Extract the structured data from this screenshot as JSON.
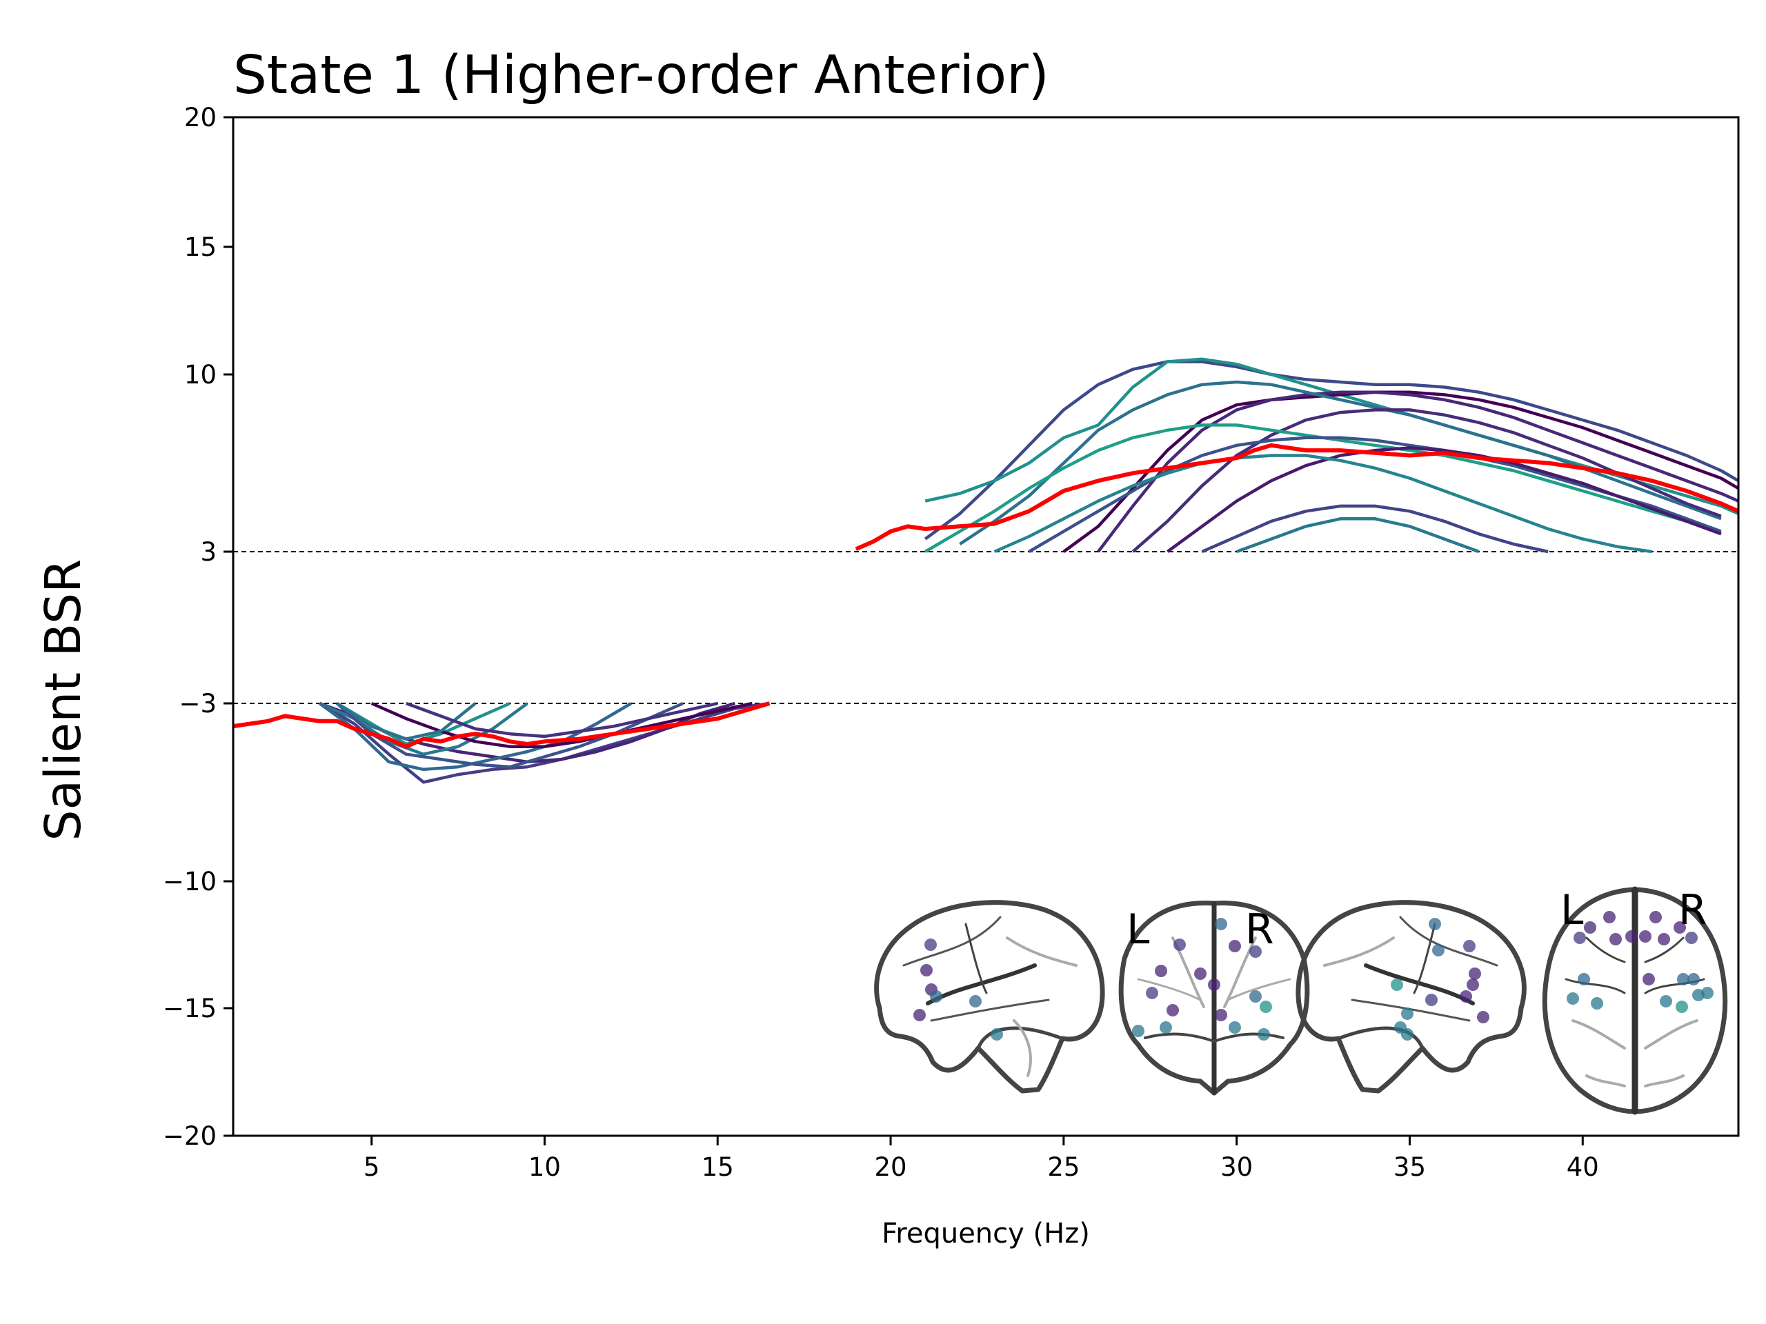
{
  "chart_data": {
    "type": "line",
    "title": "State 1 (Higher-order Anterior)",
    "xlabel": "Frequency (Hz)",
    "ylabel": "Salient BSR",
    "xlim": [
      1,
      44.5
    ],
    "ylim": [
      -20,
      20
    ],
    "y_scale": "piecewise: gap between -3 and 3 compressed",
    "x_ticks": [
      5,
      10,
      15,
      20,
      25,
      30,
      35,
      40
    ],
    "y_ticks": [
      -20,
      -15,
      -10,
      -3,
      3,
      10,
      15,
      20
    ],
    "thresholds": [
      3,
      -3
    ],
    "grid": false,
    "legend": "none",
    "colors": {
      "mean": "#ff0000",
      "threshold": "#000000"
    },
    "series": [
      {
        "role": "mean",
        "color": "#ff0000",
        "x": [
          1,
          2,
          2.5,
          3,
          3.5,
          4,
          4.5,
          5,
          5.5,
          6,
          6.5,
          7,
          7.5,
          8,
          8.5,
          9,
          9.5,
          10,
          11,
          12,
          13,
          14,
          15,
          16,
          16.5
        ],
        "y": [
          -3.9,
          -3.7,
          -3.5,
          -3.6,
          -3.7,
          -3.7,
          -4.0,
          -4.2,
          -4.4,
          -4.7,
          -4.4,
          -4.5,
          -4.3,
          -4.2,
          -4.3,
          -4.5,
          -4.6,
          -4.5,
          -4.4,
          -4.2,
          -4.0,
          -3.8,
          -3.6,
          -3.2,
          -3.0
        ]
      },
      {
        "role": "mean",
        "color": "#ff0000",
        "x": [
          19,
          19.5,
          20,
          20.5,
          21,
          22,
          23,
          24,
          25,
          26,
          27,
          28,
          29,
          30,
          30.5,
          31,
          32,
          33,
          34,
          35,
          36,
          37,
          38,
          39,
          40,
          41,
          42,
          43,
          44,
          44.5
        ],
        "y": [
          3.1,
          3.4,
          3.8,
          4.0,
          3.9,
          4.0,
          4.1,
          4.6,
          5.4,
          5.8,
          6.1,
          6.3,
          6.5,
          6.7,
          7.0,
          7.2,
          7.0,
          7.0,
          6.9,
          6.8,
          6.9,
          6.7,
          6.6,
          6.5,
          6.3,
          6.1,
          5.8,
          5.4,
          4.9,
          4.6
        ]
      },
      {
        "color": "#433e85",
        "x": [
          3.5,
          4.5,
          5.5,
          6.5,
          7.5,
          8.5,
          9.5,
          10.5,
          11.5,
          12.5,
          13.5,
          14.5,
          15.5,
          16.5
        ],
        "y": [
          -3.0,
          -3.8,
          -5.0,
          -6.1,
          -5.8,
          -5.6,
          -5.5,
          -5.2,
          -4.8,
          -4.4,
          -4.0,
          -3.6,
          -3.2,
          -3.0
        ]
      },
      {
        "color": "#482475",
        "x": [
          3.5,
          4.5,
          5.5,
          6.5,
          7.5,
          8.5,
          9.5,
          10.5,
          11.5,
          12.5,
          13.5,
          14.5,
          15.5
        ],
        "y": [
          -3.0,
          -3.5,
          -4.2,
          -4.6,
          -4.9,
          -5.1,
          -5.3,
          -5.2,
          -4.9,
          -4.5,
          -4.0,
          -3.4,
          -3.0
        ]
      },
      {
        "color": "#2a788e",
        "x": [
          3.5,
          4.5,
          5.5,
          6.5,
          7.5,
          8.5,
          9.5
        ],
        "y": [
          -3.0,
          -3.6,
          -4.5,
          -5.0,
          -4.7,
          -4.0,
          -3.0
        ]
      },
      {
        "color": "#21918c",
        "x": [
          4,
          5,
          6,
          7,
          8,
          9
        ],
        "y": [
          -3.0,
          -3.8,
          -4.6,
          -4.2,
          -3.6,
          -3.0
        ]
      },
      {
        "color": "#31688e",
        "x": [
          3.5,
          4.5,
          5.5,
          6.5,
          7.5,
          8.5,
          9.5,
          10.5,
          11.5,
          12.5
        ],
        "y": [
          -3.0,
          -4.0,
          -5.3,
          -5.6,
          -5.5,
          -5.2,
          -4.9,
          -4.5,
          -3.8,
          -3.0
        ]
      },
      {
        "color": "#440154",
        "x": [
          5,
          6,
          7,
          8,
          9,
          10,
          11,
          12,
          13,
          14,
          15,
          16
        ],
        "y": [
          -3.0,
          -3.6,
          -4.1,
          -4.5,
          -4.7,
          -4.7,
          -4.5,
          -4.2,
          -3.9,
          -3.6,
          -3.3,
          -3.0
        ]
      },
      {
        "color": "#3b528b",
        "x": [
          4,
          5,
          6,
          7,
          8,
          9,
          10,
          11,
          12,
          13,
          14
        ],
        "y": [
          -3.0,
          -4.2,
          -5.0,
          -5.2,
          -5.4,
          -5.5,
          -5.1,
          -4.7,
          -4.2,
          -3.6,
          -3.0
        ]
      },
      {
        "color": "#2c728e",
        "x": [
          4,
          5,
          6,
          7,
          8
        ],
        "y": [
          -3.0,
          -3.9,
          -4.4,
          -4.1,
          -3.0
        ]
      },
      {
        "color": "#46327e",
        "x": [
          6,
          7,
          8,
          9,
          10,
          11,
          12,
          13,
          14,
          15
        ],
        "y": [
          -3.0,
          -3.5,
          -4.0,
          -4.2,
          -4.3,
          -4.1,
          -3.9,
          -3.6,
          -3.3,
          -3.0
        ]
      },
      {
        "color": "#3e4989",
        "x": [
          21,
          22,
          23,
          24,
          25,
          26,
          27,
          28,
          29,
          30,
          31,
          32,
          33,
          34,
          35,
          36,
          37,
          38,
          39,
          40,
          41,
          42,
          43,
          44,
          44.5
        ],
        "y": [
          3.5,
          4.5,
          5.8,
          7.2,
          8.6,
          9.6,
          10.2,
          10.5,
          10.5,
          10.3,
          10.0,
          9.8,
          9.7,
          9.6,
          9.6,
          9.5,
          9.3,
          9.0,
          8.6,
          8.2,
          7.8,
          7.3,
          6.8,
          6.2,
          5.8
        ]
      },
      {
        "color": "#21918c",
        "x": [
          21,
          22,
          23,
          24,
          25,
          26,
          27,
          28,
          29,
          30,
          31,
          32,
          33,
          34,
          35,
          36,
          37,
          38,
          39,
          40,
          41,
          42,
          43,
          44,
          44.5
        ],
        "y": [
          5.0,
          5.3,
          5.8,
          6.5,
          7.5,
          8.0,
          9.5,
          10.5,
          10.6,
          10.4,
          10.0,
          9.6,
          9.2,
          8.8,
          8.4,
          8.0,
          7.6,
          7.2,
          6.8,
          6.4,
          6.0,
          5.6,
          5.2,
          4.8,
          4.5
        ]
      },
      {
        "color": "#440154",
        "x": [
          25,
          26,
          27,
          28,
          29,
          30,
          31,
          32,
          33,
          34,
          35,
          36,
          37,
          38,
          39,
          40,
          41,
          42,
          43,
          44,
          44.5
        ],
        "y": [
          3.0,
          4.0,
          5.5,
          7.0,
          8.2,
          8.8,
          9.0,
          9.1,
          9.2,
          9.3,
          9.3,
          9.2,
          9.0,
          8.7,
          8.3,
          7.9,
          7.4,
          6.9,
          6.4,
          5.9,
          5.5
        ]
      },
      {
        "color": "#482878",
        "x": [
          26,
          27,
          28,
          29,
          30,
          31,
          32,
          33,
          34,
          35,
          36,
          37,
          38,
          39,
          40,
          41,
          42,
          43,
          44,
          44.5
        ],
        "y": [
          3.0,
          4.8,
          6.5,
          7.8,
          8.6,
          9.0,
          9.2,
          9.3,
          9.3,
          9.2,
          9.0,
          8.7,
          8.3,
          7.8,
          7.3,
          6.8,
          6.3,
          5.8,
          5.3,
          5.0
        ]
      },
      {
        "color": "#2c728e",
        "x": [
          22,
          23,
          24,
          25,
          26,
          27,
          28,
          29,
          30,
          31,
          32,
          33,
          34,
          35,
          36,
          37,
          38,
          39,
          40,
          41,
          42,
          43,
          44
        ],
        "y": [
          3.3,
          4.2,
          5.2,
          6.5,
          7.8,
          8.6,
          9.2,
          9.6,
          9.7,
          9.6,
          9.3,
          9.0,
          8.7,
          8.4,
          8.0,
          7.6,
          7.2,
          6.8,
          6.3,
          5.8,
          5.3,
          4.8,
          4.3
        ]
      },
      {
        "color": "#472c7a",
        "x": [
          27,
          28,
          29,
          30,
          31,
          32,
          33,
          34,
          35,
          36,
          37,
          38,
          39,
          40,
          41,
          42,
          43,
          44
        ],
        "y": [
          3.0,
          4.2,
          5.6,
          6.8,
          7.6,
          8.2,
          8.5,
          8.6,
          8.6,
          8.4,
          8.1,
          7.7,
          7.2,
          6.7,
          6.1,
          5.5,
          4.9,
          4.4
        ]
      },
      {
        "color": "#1f9e89",
        "x": [
          21,
          22,
          23,
          24,
          25,
          26,
          27,
          28,
          29,
          30,
          31,
          32,
          33,
          34,
          35,
          36,
          37,
          38,
          39,
          40,
          41,
          42,
          43,
          44
        ],
        "y": [
          3.0,
          3.8,
          4.6,
          5.5,
          6.3,
          7.0,
          7.5,
          7.8,
          8.0,
          8.0,
          7.8,
          7.6,
          7.4,
          7.2,
          7.0,
          6.8,
          6.5,
          6.2,
          5.8,
          5.4,
          5.0,
          4.6,
          4.2,
          3.8
        ]
      },
      {
        "color": "#3b528b",
        "x": [
          24,
          25,
          26,
          27,
          28,
          29,
          30,
          31,
          32,
          33,
          34,
          35,
          36,
          37,
          38,
          39,
          40,
          41,
          42,
          43,
          44
        ],
        "y": [
          3.0,
          3.8,
          4.6,
          5.4,
          6.2,
          6.8,
          7.2,
          7.4,
          7.5,
          7.5,
          7.4,
          7.2,
          7.0,
          6.7,
          6.4,
          6.0,
          5.6,
          5.2,
          4.8,
          4.3,
          3.8
        ]
      },
      {
        "color": "#481b6d",
        "x": [
          28,
          29,
          30,
          31,
          32,
          33,
          34,
          35,
          36,
          37,
          38,
          39,
          40,
          41,
          42,
          43,
          44
        ],
        "y": [
          3.0,
          4.0,
          5.0,
          5.8,
          6.4,
          6.8,
          7.0,
          7.1,
          7.0,
          6.8,
          6.5,
          6.1,
          5.7,
          5.2,
          4.7,
          4.2,
          3.7
        ]
      },
      {
        "color": "#25848e",
        "x": [
          23,
          24,
          25,
          26,
          27,
          28,
          29,
          30,
          31,
          32,
          33,
          34,
          35,
          36,
          37,
          38,
          39,
          40,
          41,
          42
        ],
        "y": [
          3.0,
          3.6,
          4.3,
          5.0,
          5.6,
          6.1,
          6.5,
          6.7,
          6.8,
          6.8,
          6.6,
          6.3,
          5.9,
          5.4,
          4.9,
          4.4,
          3.9,
          3.5,
          3.2,
          3.0
        ]
      },
      {
        "color": "#414487",
        "x": [
          29,
          30,
          31,
          32,
          33,
          34,
          35,
          36,
          37,
          38,
          39
        ],
        "y": [
          3.0,
          3.6,
          4.2,
          4.6,
          4.8,
          4.8,
          4.6,
          4.2,
          3.7,
          3.3,
          3.0
        ]
      },
      {
        "color": "#2a788e",
        "x": [
          30,
          31,
          32,
          33,
          34,
          35,
          36,
          37
        ],
        "y": [
          3.0,
          3.5,
          4.0,
          4.3,
          4.3,
          4.0,
          3.5,
          3.0
        ]
      }
    ]
  },
  "brain": {
    "views": [
      "sagittal-left",
      "coronal",
      "sagittal-right",
      "axial"
    ],
    "labels": {
      "coronal_left": "L",
      "coronal_right": "R",
      "axial_left": "L",
      "axial_right": "R"
    },
    "node_colors": [
      "#482475",
      "#433e85",
      "#2a788e",
      "#21918c",
      "#440154",
      "#31688e"
    ]
  }
}
